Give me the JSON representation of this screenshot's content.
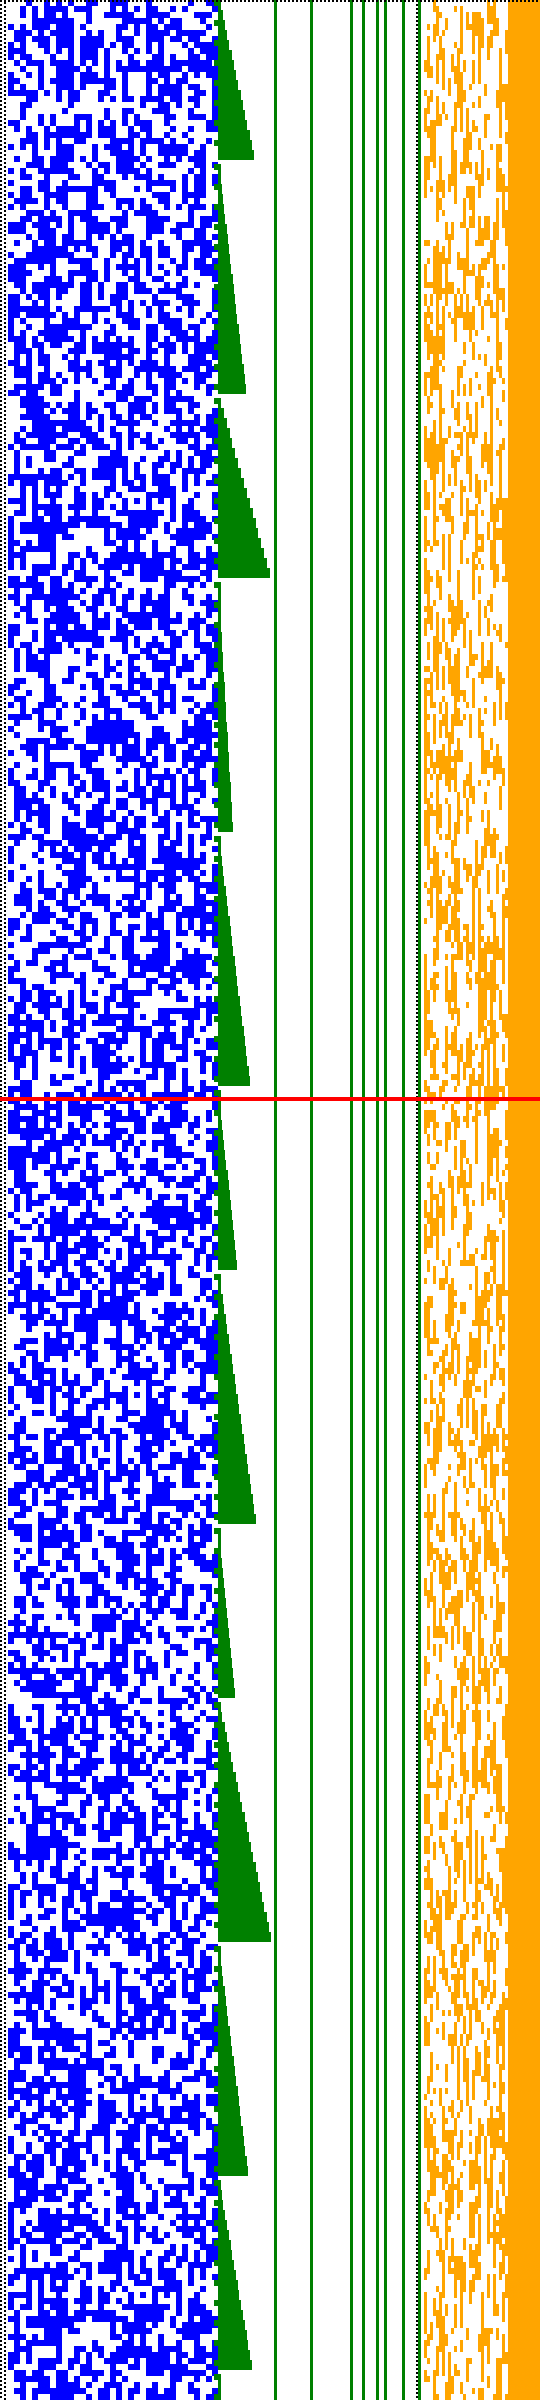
{
  "colors": {
    "background": "#ffffff",
    "dotted_border": "#000000",
    "left_pattern": "#0000ff",
    "staircase": "#008000",
    "green_lines": "#008000",
    "right_pattern": "#ffa500",
    "marker_line": "#ff0000"
  },
  "marker": {
    "row_fraction": 0.458
  },
  "regions": {
    "left_pattern": {
      "label": "",
      "density": 0.52
    },
    "right_pattern": {
      "label": "",
      "density": 0.32
    }
  }
}
